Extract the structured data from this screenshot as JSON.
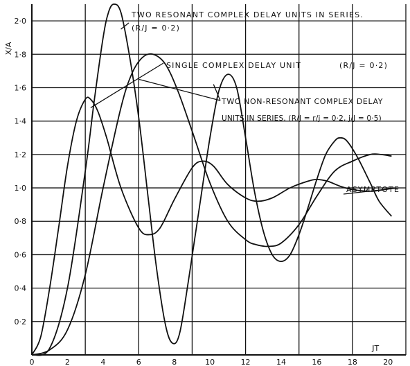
{
  "chart_data": {
    "type": "line",
    "title": "",
    "xlabel": "JT",
    "ylabel": "X/A",
    "xlim": [
      0,
      21
    ],
    "ylim": [
      0,
      2.1
    ],
    "grid": true,
    "xticks": [
      "0",
      "2",
      "4",
      "6",
      "8",
      "10",
      "12",
      "14",
      "16",
      "18",
      "20"
    ],
    "yticks": [
      {
        "v": 0.2,
        "label": "0·2"
      },
      {
        "v": 0.4,
        "label": "0·4"
      },
      {
        "v": 0.6,
        "label": "0·6"
      },
      {
        "v": 0.8,
        "label": "0·8"
      },
      {
        "v": 1.0,
        "label": "1·0"
      },
      {
        "v": 1.2,
        "label": "1·2"
      },
      {
        "v": 1.4,
        "label": "1·4"
      },
      {
        "v": 1.6,
        "label": "1·6"
      },
      {
        "v": 1.8,
        "label": "1·8"
      },
      {
        "v": 2.0,
        "label": "2·0"
      }
    ],
    "annotations": {
      "two_resonant": [
        "TWO RESONANT COMPLEX DELAY UNITS IN SERIES.",
        "(R/J = 0·2)"
      ],
      "single": [
        "SINGLE COMPLEX DELAY UNIT",
        "(R/J = 0·2)"
      ],
      "non_resonant": [
        "TWO NON-RESONANT COMPLEX DELAY",
        "UNITS IN SERIES. (R/J = r/j = 0·2, j/J = 0·5)"
      ],
      "asymptote": "ASYMPTOTE"
    },
    "series": [
      {
        "x": [
          0,
          0.5,
          1,
          1.5,
          2,
          2.5,
          3,
          3.3,
          3.7,
          4.2,
          5,
          6,
          6.6,
          7.2,
          8,
          9,
          9.6,
          10.2,
          11,
          12,
          12.7,
          13.5,
          14.5,
          15.5,
          16,
          16.6,
          17.3,
          18,
          19,
          19.8,
          20.3
        ],
        "y": [
          0,
          0.11,
          0.4,
          0.76,
          1.13,
          1.4,
          1.53,
          1.53,
          1.46,
          1.3,
          1.0,
          0.76,
          0.72,
          0.76,
          0.93,
          1.12,
          1.16,
          1.13,
          1.02,
          0.94,
          0.92,
          0.94,
          1.0,
          1.04,
          1.05,
          1.04,
          1.01,
          0.99,
          0.98,
          0.99,
          1.0
        ]
      },
      {
        "x": [
          0,
          1,
          2,
          3,
          3.5,
          4,
          4.3,
          4.6,
          5,
          5.5,
          6,
          6.5,
          7,
          7.5,
          7.9,
          8.3,
          8.8,
          9.5,
          10,
          10.5,
          11,
          11.5,
          12,
          12.5,
          13,
          13.5,
          14,
          14.5,
          15,
          15.5,
          16,
          16.5,
          17,
          17.3,
          17.7,
          18.3,
          19,
          19.5,
          20.2
        ],
        "y": [
          0,
          0.04,
          0.4,
          1.1,
          1.52,
          1.9,
          2.05,
          2.1,
          2.05,
          1.78,
          1.42,
          0.97,
          0.52,
          0.18,
          0.07,
          0.13,
          0.45,
          0.95,
          1.3,
          1.58,
          1.68,
          1.6,
          1.3,
          0.98,
          0.74,
          0.6,
          0.56,
          0.6,
          0.72,
          0.88,
          1.05,
          1.2,
          1.28,
          1.3,
          1.28,
          1.18,
          1.03,
          0.92,
          0.83
        ]
      },
      {
        "x": [
          0,
          1,
          2,
          3,
          4,
          5,
          5.6,
          6.2,
          6.8,
          7.5,
          8.2,
          9,
          10,
          11,
          12,
          12.6,
          13.3,
          14,
          15,
          16,
          17,
          18,
          19,
          19.6,
          20.2
        ],
        "y": [
          0,
          0.03,
          0.15,
          0.48,
          1.0,
          1.48,
          1.68,
          1.78,
          1.8,
          1.74,
          1.58,
          1.34,
          1.03,
          0.8,
          0.69,
          0.66,
          0.65,
          0.67,
          0.78,
          0.95,
          1.1,
          1.16,
          1.2,
          1.2,
          1.19
        ]
      }
    ]
  }
}
